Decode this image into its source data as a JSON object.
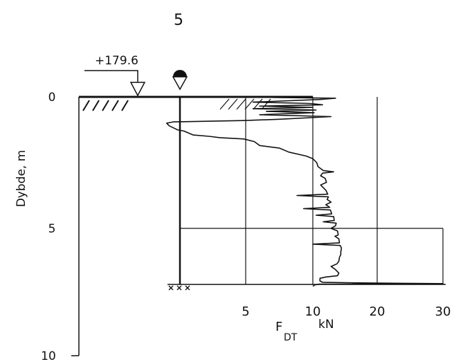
{
  "figure": {
    "number": "5",
    "elevation_label": "+179.6",
    "y_axis": {
      "title": "Dybde, m",
      "ticks": [
        "0",
        "5",
        "10"
      ]
    },
    "x_axis": {
      "ticks": [
        "5",
        "10",
        "20",
        "30"
      ],
      "label_main": "F",
      "label_sub": "DT",
      "unit": "kN"
    }
  },
  "chart_data": {
    "type": "line",
    "title": "5",
    "xlabel": "F_DT kN",
    "ylabel": "Dybde, m",
    "ylim": [
      0,
      10
    ],
    "xlim": [
      0,
      30
    ],
    "x_axis_scale": "piecewise (0-10 kN expanded, 10-30 kN compressed)",
    "y_direction": "depth increasing downward",
    "annotations": {
      "ground_elevation": "+179.6",
      "groundwater_marker": "depth 0",
      "horizontal_reference_line_depth": 5.0,
      "probe_stop_depth": 7.2
    },
    "series": [
      {
        "values_xy": [
          [
            7.0,
            0.02
          ],
          [
            13.5,
            0.05
          ],
          [
            11.0,
            0.1
          ],
          [
            5.5,
            0.2
          ],
          [
            9.8,
            0.25
          ],
          [
            11.5,
            0.3
          ],
          [
            6.0,
            0.35
          ],
          [
            10.0,
            0.4
          ],
          [
            5.5,
            0.45
          ],
          [
            10.5,
            0.5
          ],
          [
            6.5,
            0.55
          ],
          [
            10.2,
            0.6
          ],
          [
            6.0,
            0.68
          ],
          [
            12.8,
            0.75
          ],
          [
            7.5,
            0.85
          ],
          [
            4.8,
            0.9
          ],
          [
            -0.5,
            0.95
          ],
          [
            -1.0,
            1.0
          ],
          [
            -0.8,
            1.1
          ],
          [
            -0.2,
            1.25
          ],
          [
            0.3,
            1.3
          ],
          [
            1.0,
            1.45
          ],
          [
            2.2,
            1.5
          ],
          [
            3.0,
            1.55
          ],
          [
            4.8,
            1.6
          ],
          [
            5.6,
            1.7
          ],
          [
            6.0,
            1.85
          ],
          [
            7.5,
            1.95
          ],
          [
            8.2,
            2.1
          ],
          [
            9.5,
            2.25
          ],
          [
            10.0,
            2.35
          ],
          [
            10.6,
            2.5
          ],
          [
            10.8,
            2.65
          ],
          [
            11.6,
            2.8
          ],
          [
            13.2,
            2.85
          ],
          [
            11.5,
            2.9
          ],
          [
            11.2,
            3.0
          ],
          [
            11.9,
            3.1
          ],
          [
            12.1,
            3.25
          ],
          [
            11.2,
            3.35
          ],
          [
            12.0,
            3.55
          ],
          [
            12.3,
            3.7
          ],
          [
            8.8,
            3.75
          ],
          [
            12.4,
            3.8
          ],
          [
            12.2,
            3.9
          ],
          [
            12.8,
            4.0
          ],
          [
            12.0,
            4.1
          ],
          [
            12.6,
            4.2
          ],
          [
            9.3,
            4.25
          ],
          [
            12.7,
            4.3
          ],
          [
            12.9,
            4.45
          ],
          [
            10.5,
            4.5
          ],
          [
            13.2,
            4.55
          ],
          [
            13.3,
            4.7
          ],
          [
            11.6,
            4.75
          ],
          [
            13.6,
            4.8
          ],
          [
            13.5,
            4.9
          ],
          [
            12.8,
            5.0
          ],
          [
            13.8,
            5.1
          ],
          [
            13.9,
            5.25
          ],
          [
            13.4,
            5.3
          ],
          [
            14.0,
            5.4
          ],
          [
            14.1,
            5.55
          ],
          [
            10.0,
            5.6
          ],
          [
            14.2,
            5.65
          ],
          [
            14.4,
            5.75
          ],
          [
            14.3,
            5.9
          ],
          [
            14.3,
            6.0
          ],
          [
            14.1,
            6.1
          ],
          [
            14.0,
            6.25
          ],
          [
            13.7,
            6.35
          ],
          [
            12.8,
            6.45
          ],
          [
            13.4,
            6.55
          ],
          [
            14.0,
            6.7
          ],
          [
            13.8,
            6.8
          ],
          [
            12.0,
            6.85
          ],
          [
            11.1,
            6.9
          ],
          [
            11.1,
            7.0
          ],
          [
            11.5,
            7.05
          ],
          [
            16.0,
            7.07
          ],
          [
            24.0,
            7.09
          ],
          [
            30.0,
            7.1
          ],
          [
            11.0,
            7.12
          ],
          [
            10.3,
            7.15
          ],
          [
            10.0,
            7.2
          ]
        ]
      }
    ]
  },
  "colors": {
    "ink": "#111111",
    "background": "#ffffff"
  }
}
